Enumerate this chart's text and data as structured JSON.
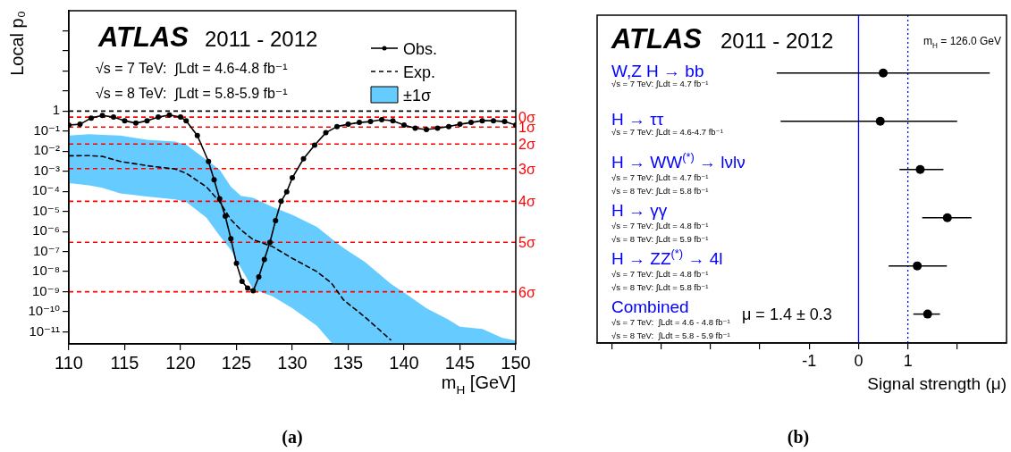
{
  "chart_data": [
    {
      "type": "line",
      "xlabel": "m$_{H}$ [GeV]",
      "ylabel": "Local p₀",
      "log": "y",
      "grid": false,
      "legend": "top right",
      "xlim": [
        110,
        150
      ],
      "xticks": [
        110,
        115,
        120,
        125,
        130,
        135,
        140,
        145,
        150
      ],
      "ylim": [
        2.5e-12,
        100000
      ],
      "yticks": [
        {
          "value": 1e-11,
          "label": "10⁻¹¹"
        },
        {
          "value": 1e-10,
          "label": "10⁻¹⁰"
        },
        {
          "value": 1e-09,
          "label": "10⁻⁹"
        },
        {
          "value": 1e-08,
          "label": "10⁻⁸"
        },
        {
          "value": 1e-07,
          "label": "10⁻⁷"
        },
        {
          "value": 1e-06,
          "label": "10⁻⁶"
        },
        {
          "value": 1e-05,
          "label": "10⁻⁵"
        },
        {
          "value": 0.0001,
          "label": "10⁻⁴"
        },
        {
          "value": 0.001,
          "label": "10⁻³"
        },
        {
          "value": 0.01,
          "label": "10⁻²"
        },
        {
          "value": 0.1,
          "label": "10⁻¹"
        },
        1,
        {
          "value": 10,
          "label": null
        },
        {
          "value": 100,
          "label": null
        },
        {
          "value": 1000,
          "label": null
        },
        {
          "value": 10000,
          "label": null
        }
      ],
      "series": [
        {
          "name": "±1σ",
          "type": "area",
          "color": "#66ccff",
          "x": [
            110,
            111.8,
            113,
            114.6,
            117,
            119.5,
            120.5,
            122.3,
            123.5,
            124.5,
            125.4,
            126.5,
            128.2,
            130,
            132.2,
            133.6,
            134.6,
            136.5,
            138.8,
            140,
            142,
            144,
            145,
            147,
            148.8,
            150
          ],
          "values": [
            null,
            null,
            null,
            null,
            null,
            null,
            null,
            null,
            null,
            null,
            null,
            null,
            null,
            null,
            null,
            null,
            null,
            null,
            null,
            null,
            null,
            null,
            null,
            null,
            null,
            null
          ],
          "upper": [
            0.06,
            0.07,
            0.065,
            0.06,
            0.037,
            0.03,
            0.021,
            0.0038,
            0.0012,
            0.00017,
            6e-05,
            4.7e-05,
            1.7e-05,
            6.7e-06,
            1.7e-06,
            4e-07,
            1.5e-07,
            3e-08,
            2.5e-09,
            9e-10,
            1.5e-10,
            4e-11,
            1.8e-11,
            1.4e-11,
            5e-12,
            3.7e-12
          ],
          "lower": [
            0.00026,
            0.0002,
            0.00015,
            8e-05,
            5.5e-05,
            4e-05,
            3e-05,
            5e-06,
            6e-07,
            1.2e-07,
            1.5e-08,
            1.3e-09,
            6e-10,
            1.5e-10,
            2e-11,
            2.5e-12,
            2.5e-12,
            2.5e-12,
            2.5e-12,
            2.5e-12,
            2.5e-12,
            2.5e-12,
            2.5e-12,
            2.5e-12,
            2.5e-12,
            2.5e-12
          ]
        },
        {
          "name": "Exp.",
          "color": "#000000",
          "line_style": "dashed",
          "marker": "none",
          "x": [
            110,
            111.8,
            113,
            114.6,
            117,
            119.5,
            120.5,
            122.3,
            123.5,
            124.5,
            125.4,
            126.5,
            128.2,
            130,
            132.2,
            133.5,
            134.6,
            136.5,
            138.8
          ],
          "values": [
            0.0059,
            0.006,
            0.0055,
            0.0031,
            0.0019,
            0.0013,
            0.0008,
            0.00017,
            3e-05,
            3.9e-06,
            1.2e-06,
            3.9e-07,
            1.8e-07,
            4.6e-08,
            1e-08,
            2.7e-09,
            3.8e-10,
            5.5e-11,
            4e-12
          ]
        },
        {
          "name": "Obs.",
          "color": "#000000",
          "line_style": "solid",
          "marker": "circle",
          "x": [
            110,
            111,
            112,
            113,
            114,
            115,
            116,
            117,
            118,
            119,
            120,
            120.5,
            121.5,
            122.5,
            123,
            123.5,
            124,
            124.5,
            125,
            125.5,
            126,
            126.5,
            127,
            127.5,
            128,
            128.5,
            129,
            129.5,
            130,
            131,
            132,
            133,
            134,
            135,
            136,
            137,
            138,
            139,
            140,
            141,
            142,
            143,
            144,
            145,
            146,
            147,
            148,
            149,
            150
          ],
          "values": [
            0.2,
            0.22,
            0.45,
            0.6,
            0.5,
            0.33,
            0.25,
            0.33,
            0.5,
            0.64,
            0.5,
            0.33,
            0.06,
            0.0031,
            0.00038,
            4.3e-05,
            5.8e-06,
            4.4e-07,
            2.6e-08,
            3.3e-09,
            1.5e-09,
            1.1e-09,
            5.4e-09,
            4e-08,
            2.9e-07,
            3.5e-06,
            3.2e-05,
            9.4e-05,
            0.00047,
            0.0042,
            0.02,
            0.083,
            0.17,
            0.22,
            0.27,
            0.3,
            0.37,
            0.33,
            0.2,
            0.14,
            0.12,
            0.14,
            0.17,
            0.22,
            0.27,
            0.33,
            0.33,
            0.3,
            0.2
          ]
        }
      ],
      "ref_lines": [
        {
          "axis": "y",
          "value": 1,
          "color": "#000000",
          "line_style": "dashed"
        },
        {
          "axis": "y",
          "value": 0.5,
          "label": "0σ",
          "color": "#ff0000",
          "line_style": "dashed"
        },
        {
          "axis": "y",
          "value": 0.159,
          "label": "1σ",
          "color": "#ff0000",
          "line_style": "dashed"
        },
        {
          "axis": "y",
          "value": 0.0228,
          "label": "2σ",
          "color": "#ff0000",
          "line_style": "dashed"
        },
        {
          "axis": "y",
          "value": 0.00135,
          "label": "3σ",
          "color": "#ff0000",
          "line_style": "dashed"
        },
        {
          "axis": "y",
          "value": 3.17e-05,
          "label": "4σ",
          "color": "#ff0000",
          "line_style": "dashed"
        },
        {
          "axis": "y",
          "value": 2.87e-07,
          "label": "5σ",
          "color": "#ff0000",
          "line_style": "dashed"
        },
        {
          "axis": "y",
          "value": 9.9e-10,
          "label": "6σ",
          "color": "#ff0000",
          "line_style": "dashed"
        }
      ],
      "annotations": [
        "ATLAS",
        "2011 - 2012",
        "√s = 7 TeV:  ∫Ldt = 4.6-4.8 fb⁻¹",
        "√s = 8 TeV:  ∫Ldt = 5.8-5.9 fb⁻¹",
        "(a)"
      ]
    },
    {
      "type": "scatter",
      "orientation": "horizontal",
      "xlabel": "Signal strength (μ)",
      "grid": false,
      "marker": "circle",
      "categories": [
        "W,Z H → bb",
        "H → ττ",
        "H → WW$^{(*)}$ → lνlν",
        "H → γγ",
        "H → ZZ$^{(*)}$ → 4l",
        "Combined"
      ],
      "values": [
        0.5,
        0.44,
        1.25,
        1.8,
        1.19,
        1.4
      ],
      "errors": [
        [
          -1.66,
          2.66
        ],
        [
          -1.58,
          2.0
        ],
        [
          0.83,
          1.72
        ],
        [
          1.29,
          2.29
        ],
        [
          0.61,
          1.79
        ],
        [
          1.11,
          1.65
        ]
      ],
      "color": "#000000",
      "xlim": [
        -5.3,
        3.0
      ],
      "xticks": [
        {
          "value": -5,
          "label": null
        },
        {
          "value": -4,
          "label": null
        },
        {
          "value": -3,
          "label": null
        },
        {
          "value": -2,
          "label": null
        },
        -1,
        0,
        1,
        {
          "value": 2,
          "label": null
        }
      ],
      "ref_lines": [
        {
          "axis": "x",
          "value": 0,
          "color": "#0000ff",
          "line_style": "solid"
        },
        {
          "axis": "x",
          "value": 1,
          "color": "#0000ff",
          "line_style": "dotted"
        }
      ],
      "annotations": [
        "ATLAS",
        "2011 - 2012",
        "m$_{H}$ = 126.0 GeV",
        "√s = 7 TeV: ∫Ldt = 4.7 fb⁻¹",
        "√s = 7 TeV: ∫Ldt = 4.6-4.7 fb⁻¹",
        "√s = 7 TeV: ∫Ldt = 4.7 fb⁻¹",
        "√s = 8 TeV: ∫Ldt = 5.8 fb⁻¹",
        "√s = 7 TeV: ∫Ldt = 4.8 fb⁻¹",
        "√s = 8 TeV: ∫Ldt = 5.9 fb⁻¹",
        "√s = 7 TeV: ∫Ldt = 4.8 fb⁻¹",
        "√s = 8 TeV: ∫Ldt = 5.8 fb⁻¹",
        "√s = 7 TeV:  ∫Ldt = 4.6 - 4.8 fb⁻¹",
        "√s = 8 TeV:  ∫Ldt = 5.8 - 5.9 fb⁻¹",
        "μ = 1.4 ± 0.3",
        "(b)"
      ]
    }
  ]
}
